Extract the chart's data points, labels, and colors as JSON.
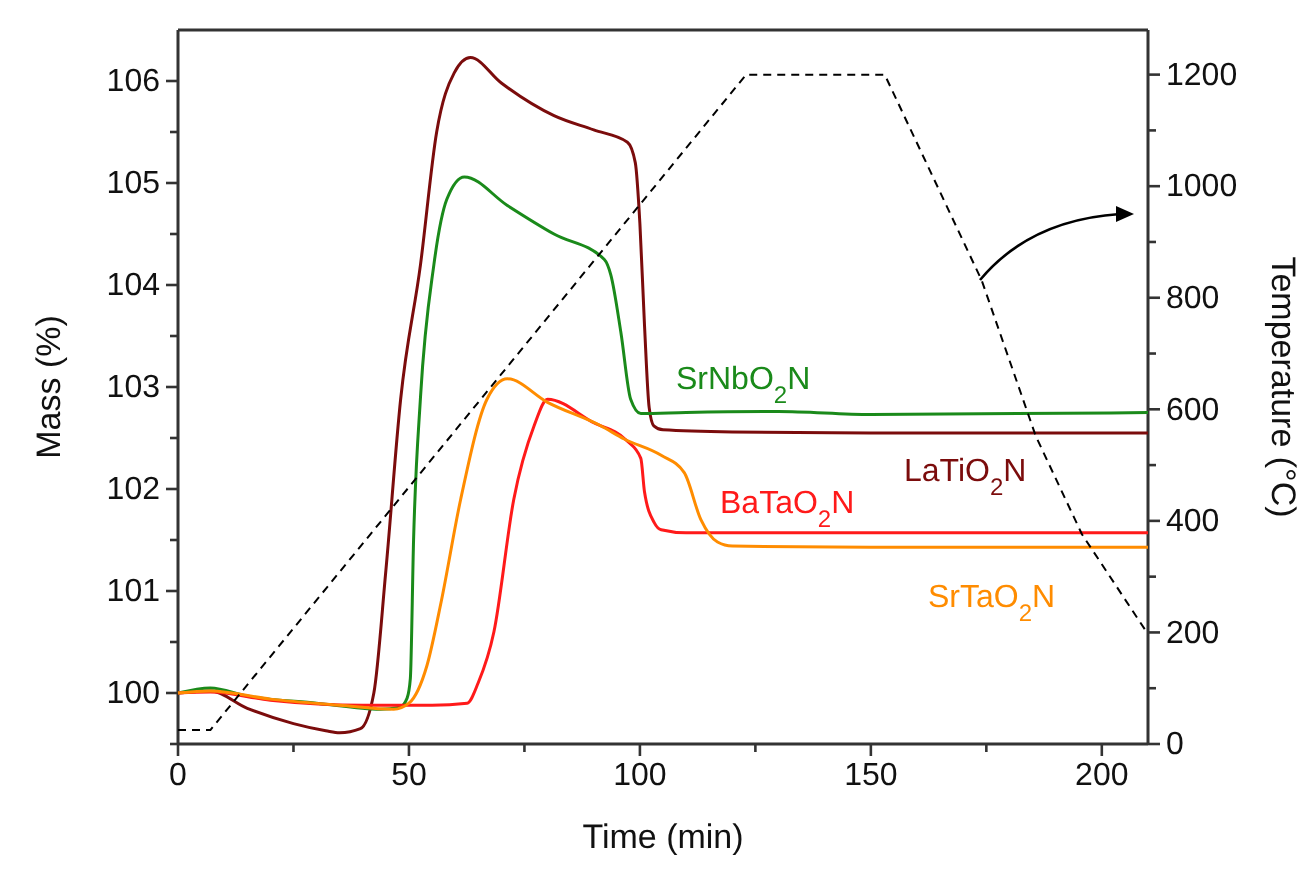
{
  "chart_data": {
    "type": "line",
    "xlabel": "Time (min)",
    "ylabel": "Mass (%)",
    "y2label": "Temperature (°C)",
    "xlim": [
      0,
      210
    ],
    "xticks": [
      0,
      {
        "value": 25,
        "label": null
      },
      50,
      {
        "value": 75,
        "label": null
      },
      100,
      {
        "value": 125,
        "label": null
      },
      150,
      {
        "value": 175,
        "label": null
      },
      200
    ],
    "ylim": [
      99.5,
      106.5
    ],
    "yticks": [
      {
        "value": 99.5,
        "label": null
      },
      100,
      {
        "value": 100.5,
        "label": null
      },
      101,
      {
        "value": 101.5,
        "label": null
      },
      102,
      {
        "value": 102.5,
        "label": null
      },
      103,
      {
        "value": 103.5,
        "label": null
      },
      104,
      {
        "value": 104.5,
        "label": null
      },
      105,
      {
        "value": 105.5,
        "label": null
      },
      106
    ],
    "y2lim": [
      0,
      1280
    ],
    "y2ticks": [
      0,
      {
        "value": 100,
        "label": null
      },
      200,
      {
        "value": 300,
        "label": null
      },
      400,
      {
        "value": 500,
        "label": null
      },
      600,
      {
        "value": 700,
        "label": null
      },
      800,
      {
        "value": 900,
        "label": null
      },
      1000,
      {
        "value": 1100,
        "label": null
      },
      1200
    ],
    "grid": false,
    "marker": "none",
    "series": [
      {
        "name": "LaTiO$_{2}$N",
        "color": "#7b0c0c",
        "x": [
          0,
          7,
          15,
          25,
          32,
          35,
          39.5,
          42.4,
          45,
          48.2,
          52.5,
          56,
          59.8,
          63.3,
          70,
          81.4,
          90,
          97.3,
          99,
          100,
          101,
          102,
          103,
          105,
          120,
          150,
          210
        ],
        "values": [
          100,
          100.02,
          99.85,
          99.7,
          99.63,
          99.61,
          99.65,
          100,
          101.2,
          102.88,
          104.2,
          105.5,
          106.08,
          106.23,
          105.98,
          105.66,
          105.52,
          105.4,
          105.2,
          104.6,
          103.6,
          102.8,
          102.62,
          102.58,
          102.56,
          102.55,
          102.55
        ]
      },
      {
        "name": "SrNbO$_{2}$N",
        "color": "#1a8a1a",
        "x": [
          0,
          7,
          15,
          30,
          43.8,
          48,
          49.6,
          50.3,
          51,
          52.5,
          55.4,
          58.2,
          62,
          71.3,
          81.4,
          92.3,
          93.7,
          95.9,
          98,
          100.2,
          110,
          130,
          150,
          210
        ],
        "values": [
          100,
          100.05,
          99.97,
          99.9,
          99.84,
          99.86,
          99.95,
          100.14,
          101.5,
          102.9,
          104.2,
          104.84,
          105.06,
          104.78,
          104.5,
          104.25,
          104.1,
          103.53,
          102.88,
          102.74,
          102.75,
          102.76,
          102.73,
          102.75
        ]
      },
      {
        "name": "BaTaO$_{2}$N",
        "color": "#ff1a1a",
        "x": [
          0,
          7,
          20,
          40,
          55,
          62.6,
          65,
          68.4,
          72.7,
          77.1,
          80,
          90,
          97,
          100.2,
          101,
          103.1,
          104.6,
          110,
          150,
          210
        ],
        "values": [
          100,
          100.01,
          99.93,
          99.88,
          99.88,
          99.9,
          100.1,
          100.6,
          101.9,
          102.62,
          102.88,
          102.65,
          102.48,
          102.3,
          101.97,
          101.67,
          101.6,
          101.57,
          101.57,
          101.57
        ]
      },
      {
        "name": "SrTaO$_{2}$N",
        "color": "#ff8c00",
        "x": [
          0,
          7,
          20,
          35,
          46.7,
          50,
          53.9,
          57,
          61.2,
          66.9,
          71.3,
          80,
          91.5,
          96.6,
          104.6,
          109.6,
          113.2,
          116.8,
          120,
          150,
          210
        ],
        "values": [
          100,
          100.02,
          99.94,
          99.88,
          99.84,
          99.9,
          100.27,
          100.9,
          101.9,
          102.88,
          103.08,
          102.85,
          102.62,
          102.49,
          102.33,
          102.16,
          101.7,
          101.48,
          101.44,
          101.43,
          101.43
        ]
      },
      {
        "axis": "y2",
        "color": "#000000",
        "line_style": "dashed",
        "x": [
          0,
          7,
          123,
          153,
          174,
          185.7,
          195.7,
          210
        ],
        "values": [
          25,
          25,
          1200,
          1200,
          831,
          552,
          376,
          197
        ]
      }
    ]
  }
}
